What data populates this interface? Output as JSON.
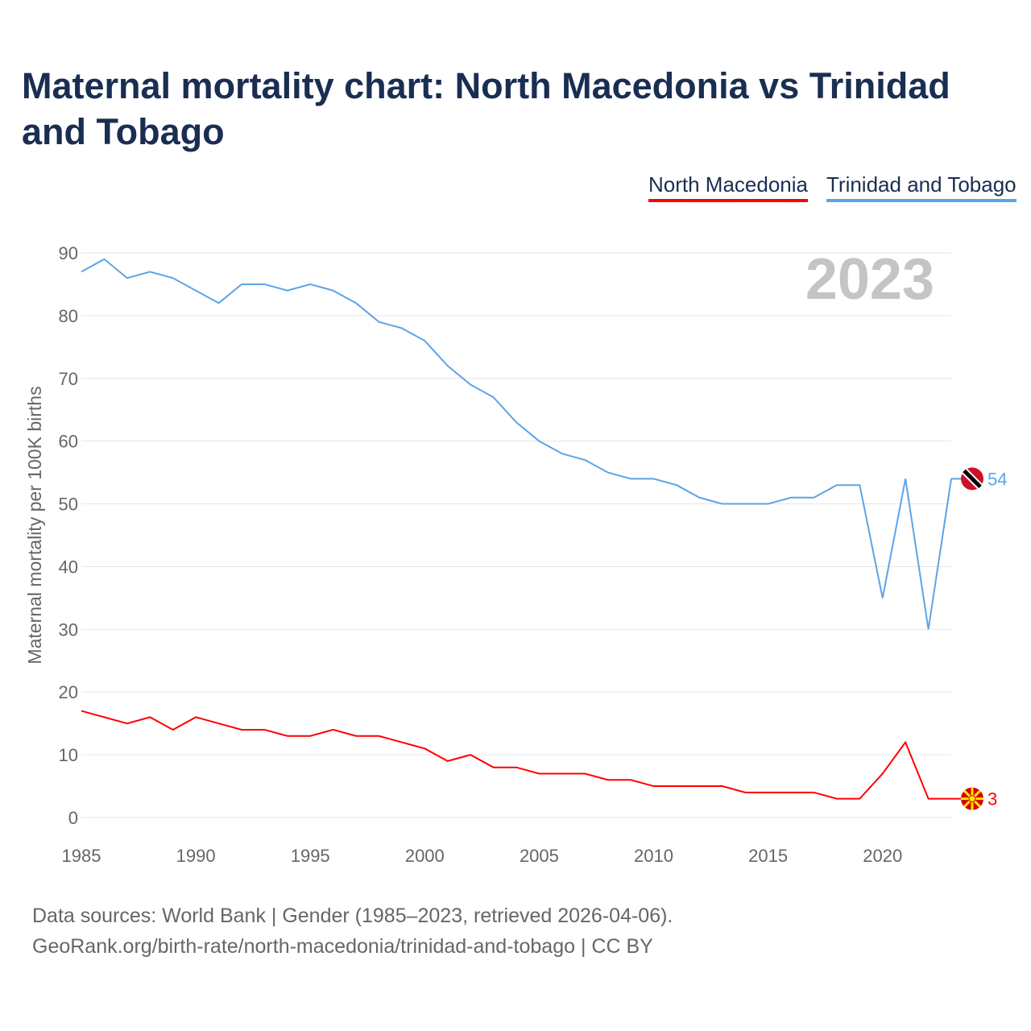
{
  "title": "Maternal mortality chart: North Macedonia vs Trinidad and Tobago",
  "footer": {
    "line1": "Data sources: World Bank | Gender (1985–2023, retrieved 2026-04-06).",
    "line2": "GeoRank.org/birth-rate/north-macedonia/trinidad-and-tobago | CC BY"
  },
  "chart_data": {
    "type": "line",
    "title": "Maternal mortality chart: North Macedonia vs Trinidad and Tobago",
    "ylabel": "Maternal mortality per 100K births",
    "xlabel": "",
    "year_label": "2023",
    "ylim": [
      0,
      90
    ],
    "xlim": [
      1985,
      2023
    ],
    "yticks": [
      0,
      10,
      20,
      30,
      40,
      50,
      60,
      70,
      80,
      90
    ],
    "xticks": [
      1985,
      1990,
      1995,
      2000,
      2005,
      2010,
      2015,
      2020
    ],
    "grid": true,
    "legend_position": "top-right",
    "x": [
      1985,
      1986,
      1987,
      1988,
      1989,
      1990,
      1991,
      1992,
      1993,
      1994,
      1995,
      1996,
      1997,
      1998,
      1999,
      2000,
      2001,
      2002,
      2003,
      2004,
      2005,
      2006,
      2007,
      2008,
      2009,
      2010,
      2011,
      2012,
      2013,
      2014,
      2015,
      2016,
      2017,
      2018,
      2019,
      2020,
      2021,
      2022,
      2023
    ],
    "series": [
      {
        "name": "North Macedonia",
        "color": "#ff0000",
        "end_label": "3",
        "values": [
          17,
          16,
          15,
          16,
          14,
          16,
          15,
          14,
          14,
          13,
          13,
          14,
          13,
          13,
          12,
          11,
          9,
          10,
          8,
          8,
          7,
          7,
          7,
          6,
          6,
          5,
          5,
          5,
          5,
          4,
          4,
          4,
          4,
          3,
          3,
          7,
          12,
          3,
          3
        ]
      },
      {
        "name": "Trinidad and Tobago",
        "color": "#5ba4e8",
        "end_label": "54",
        "values": [
          87,
          89,
          86,
          87,
          86,
          84,
          82,
          85,
          85,
          84,
          85,
          84,
          82,
          79,
          78,
          76,
          72,
          69,
          67,
          63,
          60,
          58,
          57,
          55,
          54,
          54,
          53,
          51,
          50,
          50,
          50,
          51,
          51,
          53,
          53,
          35,
          54,
          30,
          54
        ]
      }
    ]
  }
}
